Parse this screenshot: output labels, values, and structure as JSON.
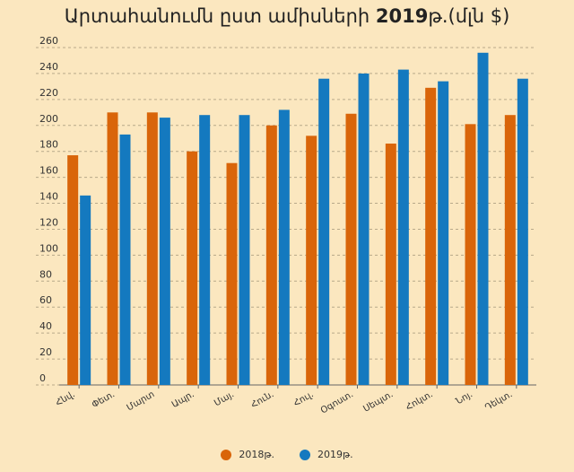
{
  "chart_data": {
    "type": "bar",
    "title": {
      "main": "Արտահանումն ըստ ամիսների",
      "year": "2019",
      "suffix": "թ.(մլն $)"
    },
    "categories": [
      "Հնվ.",
      "Փետ.",
      "Մարտ",
      "Ապր.",
      "Մայ.",
      "Հուն.",
      "Հուլ.",
      "Օգոստ.",
      "Սեպտ.",
      "Հոկտ.",
      "Նոյ.",
      "Դեկտ."
    ],
    "series": [
      {
        "name": "2018թ.",
        "color": "#d9650a",
        "values": [
          177,
          210,
          210,
          180,
          171,
          200,
          192,
          209,
          186,
          229,
          201,
          208
        ]
      },
      {
        "name": "2019թ.",
        "color": "#1479bf",
        "values": [
          146,
          193,
          206,
          208,
          208,
          212,
          236,
          240,
          243,
          234,
          256,
          236
        ]
      }
    ],
    "ylim": [
      0,
      260
    ],
    "yticks": [
      0,
      20,
      40,
      60,
      80,
      100,
      120,
      140,
      160,
      180,
      200,
      220,
      240,
      260
    ],
    "grid": true,
    "legend_position": "bottom"
  }
}
